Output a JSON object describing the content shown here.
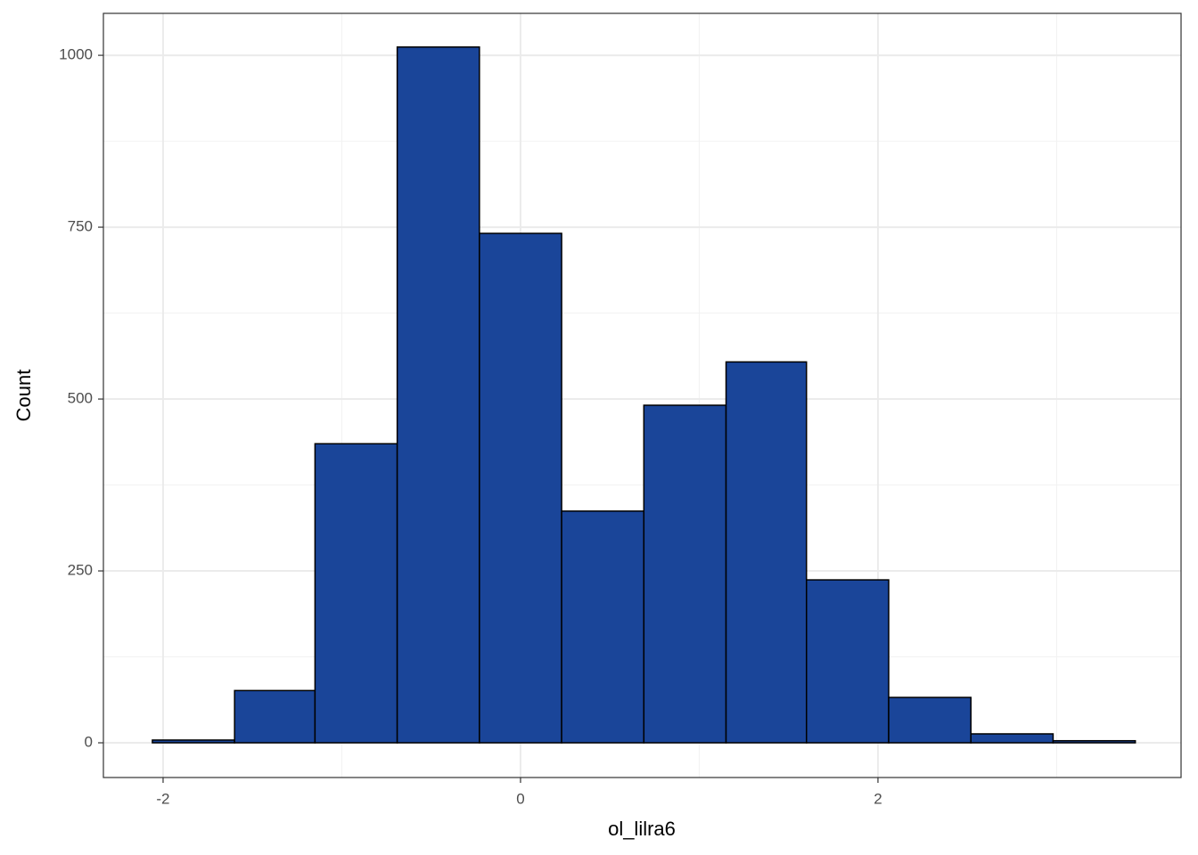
{
  "chart_data": {
    "type": "histogram",
    "x_label": "ol_lilra6",
    "y_label": "Count",
    "bins": [
      -2.06,
      -1.6,
      -1.15,
      -0.69,
      -0.23,
      0.23,
      0.69,
      1.15,
      1.6,
      2.06,
      2.52,
      2.98,
      3.44
    ],
    "values": [
      4,
      76,
      435,
      1012,
      741,
      337,
      491,
      554,
      237,
      66,
      13,
      3
    ],
    "color": "#1a4599",
    "edge_color": "#000000",
    "xlim": [
      -2.334,
      3.696
    ],
    "ylim": [
      -50.5,
      1061
    ],
    "xticks": [
      -2,
      0,
      2
    ],
    "yticks": [
      0,
      250,
      500,
      750,
      1000
    ],
    "minor_xticks": [
      -1,
      1,
      3
    ],
    "minor_yticks": [
      125,
      375,
      625,
      875
    ],
    "grid": true
  }
}
